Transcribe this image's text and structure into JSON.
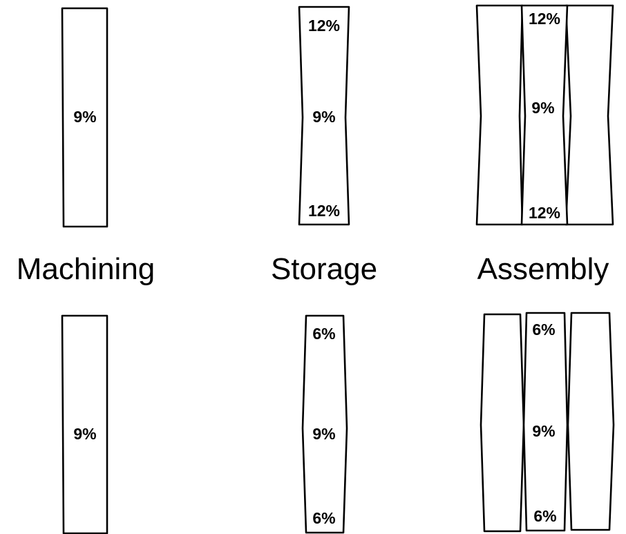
{
  "titles": {
    "machining": "Machining",
    "storage": "Storage",
    "assembly": "Assembly"
  },
  "top_row": {
    "machining": {
      "middle": "9%"
    },
    "storage": {
      "top": "12%",
      "middle": "9%",
      "bottom": "12%"
    },
    "assembly": {
      "top": "12%",
      "middle": "9%",
      "bottom": "12%"
    }
  },
  "bottom_row": {
    "machining": {
      "middle": "9%"
    },
    "storage": {
      "top": "6%",
      "middle": "9%",
      "bottom": "6%"
    },
    "assembly": {
      "top": "6%",
      "middle": "9%",
      "bottom": "6%"
    }
  }
}
